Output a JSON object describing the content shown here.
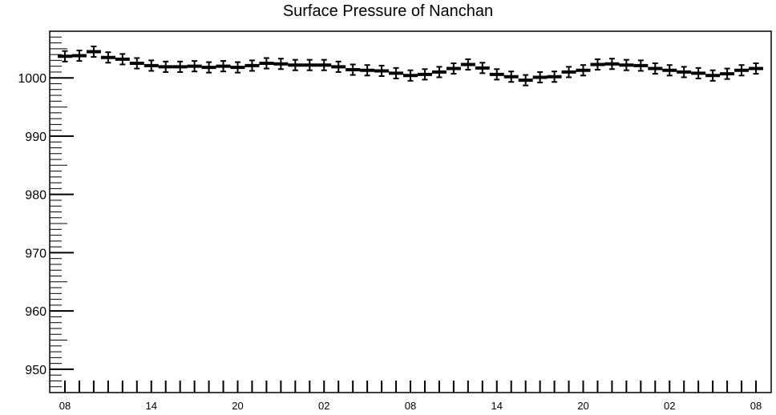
{
  "chart_data": {
    "type": "scatter",
    "title": "Surface Pressure of Nanchan",
    "xlabel": "",
    "ylabel": "",
    "ylim": [
      946,
      1008
    ],
    "y_ticks": [
      950,
      960,
      970,
      980,
      990,
      1000
    ],
    "x_tick_labels": [
      "08",
      "14",
      "20",
      "02",
      "08",
      "14",
      "20",
      "02",
      "08"
    ],
    "x_tick_interval_points": 6,
    "grid": false,
    "legend": "none",
    "marker_color": "#000000",
    "error_bar": 0.9,
    "series": [
      {
        "values": [
          1003.7,
          1003.8,
          1004.5,
          1003.5,
          1003.2,
          1002.5,
          1002.1,
          1001.9,
          1001.9,
          1002.0,
          1001.8,
          1002.0,
          1001.8,
          1002.1,
          1002.5,
          1002.4,
          1002.2,
          1002.2,
          1002.2,
          1001.9,
          1001.4,
          1001.3,
          1001.2,
          1000.8,
          1000.4,
          1000.6,
          1001.0,
          1001.6,
          1002.3,
          1001.7,
          1000.6,
          1000.2,
          999.6,
          1000.1,
          1000.2,
          1001.0,
          1001.3,
          1002.3,
          1002.4,
          1002.2,
          1002.1,
          1001.6,
          1001.3,
          1001.0,
          1000.8,
          1000.4,
          1000.7,
          1001.3,
          1001.6
        ]
      }
    ]
  }
}
